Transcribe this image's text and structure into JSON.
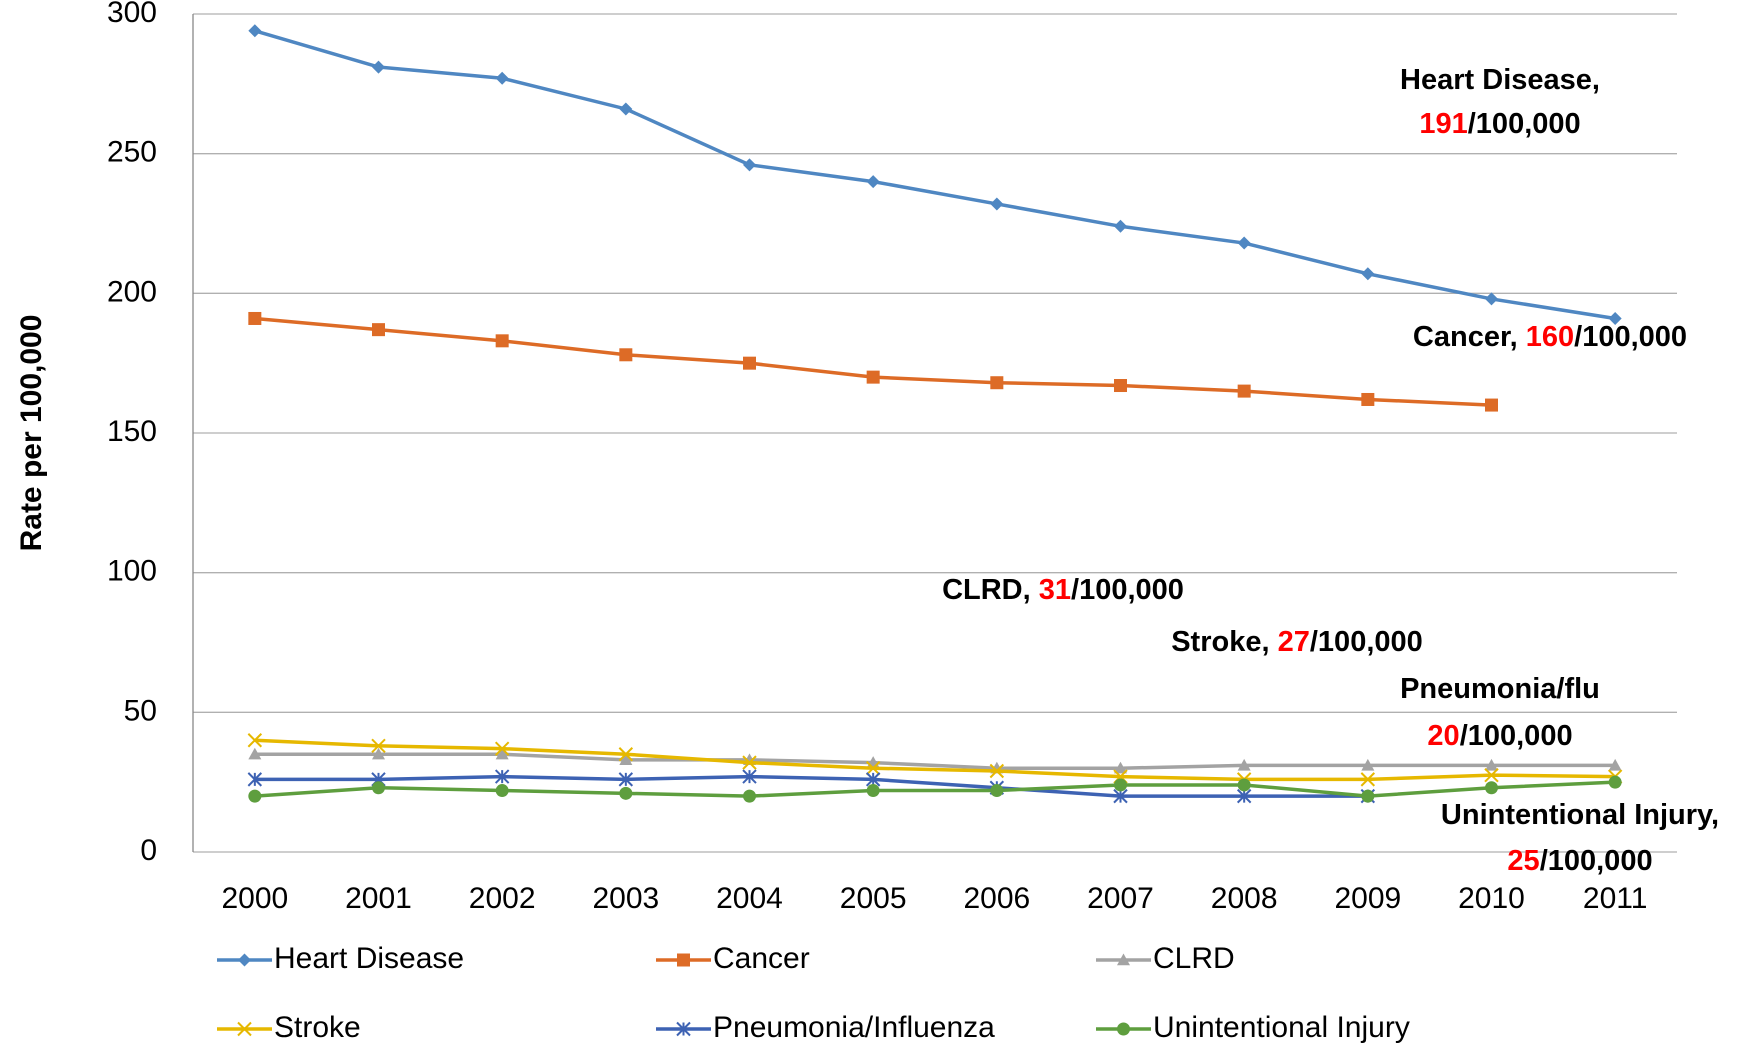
{
  "chart_data": {
    "type": "line",
    "y_label": "Rate per 100,000",
    "categories": [
      "2000",
      "2001",
      "2002",
      "2003",
      "2004",
      "2005",
      "2006",
      "2007",
      "2008",
      "2009",
      "2010",
      "2011"
    ],
    "ylim": [
      0,
      300
    ],
    "yticks": [
      0,
      50,
      100,
      150,
      200,
      250,
      300
    ],
    "grid": true,
    "series": [
      {
        "name": "Heart Disease",
        "color": "#4f87c2",
        "marker": "diamond",
        "values": [
          294,
          281,
          277,
          266,
          246,
          240,
          232,
          224,
          218,
          207,
          198,
          191
        ]
      },
      {
        "name": "Cancer",
        "color": "#dd6b26",
        "marker": "square",
        "values": [
          191,
          187,
          183,
          178,
          175,
          170,
          168,
          167,
          165,
          162,
          160,
          null
        ]
      },
      {
        "name": "CLRD",
        "color": "#a3a3a3",
        "marker": "triangle",
        "values": [
          35,
          35,
          35,
          33,
          33,
          32,
          30,
          30,
          31,
          31,
          31,
          31
        ]
      },
      {
        "name": "Stroke",
        "color": "#e6b800",
        "marker": "x",
        "values": [
          40,
          38,
          37,
          35,
          32,
          30,
          29,
          27,
          26,
          26,
          27.5,
          27
        ]
      },
      {
        "name": "Pneumonia/Influenza",
        "color": "#3d62b3",
        "marker": "star",
        "values": [
          26,
          26,
          27,
          26,
          27,
          26,
          23,
          20,
          20,
          20,
          null,
          null
        ]
      },
      {
        "name": "Unintentional Injury",
        "color": "#5e9e3e",
        "marker": "circle",
        "values": [
          20,
          23,
          22,
          21,
          20,
          22,
          22,
          24,
          24,
          20,
          23,
          25
        ]
      }
    ],
    "highlight_color": "#ff0000",
    "annotations": [
      {
        "label": "Heart Disease,",
        "value": 191,
        "unit": "/100,000",
        "break": true
      },
      {
        "label": "Cancer,",
        "value": 160,
        "unit": "/100,000",
        "break": false
      },
      {
        "label": "CLRD,",
        "value": 31,
        "unit": "/100,000",
        "break": false
      },
      {
        "label": "Stroke,",
        "value": 27,
        "unit": "/100,000",
        "break": false
      },
      {
        "label": "Pneumonia/flu",
        "value": 20,
        "unit": "/100,000",
        "break": true
      },
      {
        "label": "Unintentional Injury,",
        "value": 25,
        "unit": "/100,000",
        "break": true
      }
    ]
  }
}
